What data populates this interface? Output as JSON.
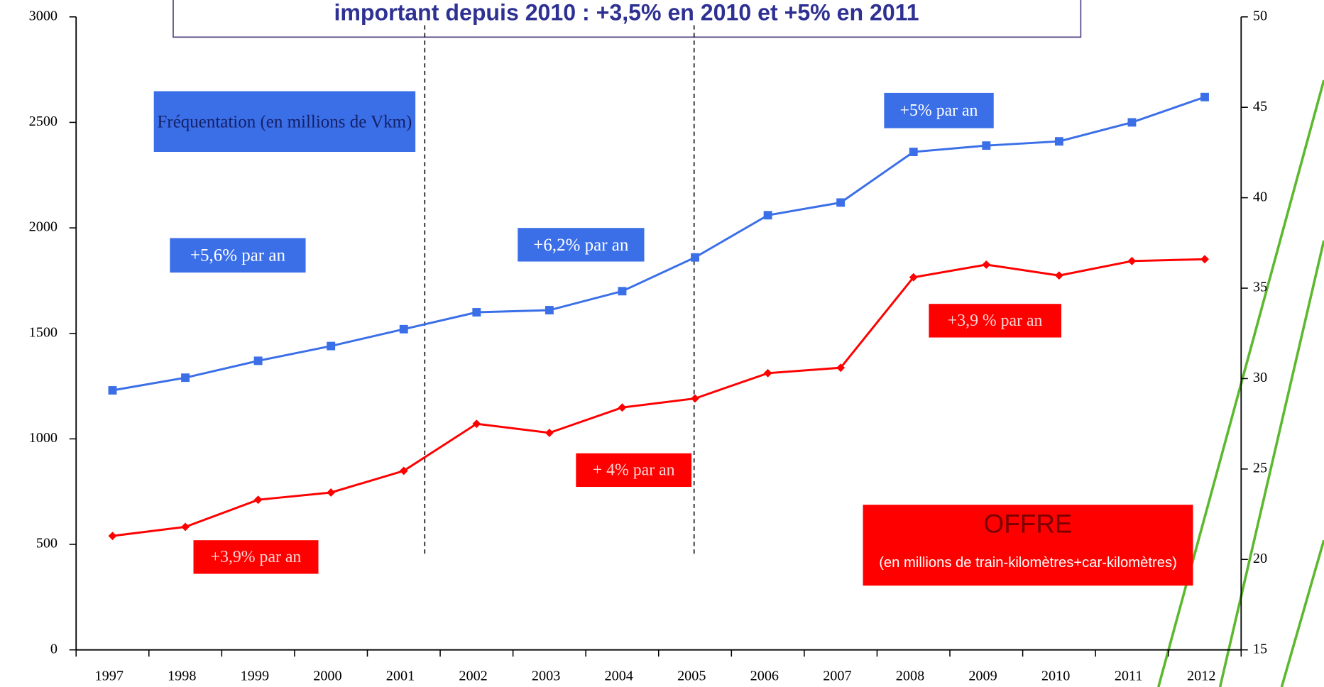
{
  "chart_data": {
    "type": "line",
    "title": "important depuis 2010  : +3,5% en 2010 et +5% en 2011",
    "categories": [
      "1997",
      "1998",
      "1999",
      "2000",
      "2001",
      "2002",
      "2003",
      "2004",
      "2005",
      "2006",
      "2007",
      "2008",
      "2009",
      "2010",
      "2011",
      "2012"
    ],
    "series": [
      {
        "color": "#3b6fe8",
        "marker": "square",
        "values": [
          1230,
          1290,
          1370,
          1440,
          1520,
          1600,
          1610,
          1700,
          1860,
          2060,
          2120,
          2360,
          2390,
          2410,
          2500,
          2620
        ]
      },
      {
        "color": "#ff0000",
        "marker": "diamond",
        "axis": "y2",
        "values": [
          21.3,
          21.8,
          23.3,
          23.7,
          24.9,
          27.5,
          27.0,
          28.4,
          28.9,
          30.3,
          30.6,
          35.6,
          36.3,
          35.7,
          36.5,
          36.6
        ]
      }
    ],
    "ylim": [
      0,
      3000
    ],
    "yticks": [
      0,
      500,
      1000,
      1500,
      2000,
      2500,
      3000
    ],
    "y2lim": [
      15,
      50
    ],
    "y2ticks": [
      15,
      20,
      25,
      30,
      35,
      40,
      45,
      50
    ],
    "annotations": [
      {
        "text": "Fréquentation (en millions de Vkm)"
      },
      {
        "text": "+5,6% par an"
      },
      {
        "text": "+6,2% par an"
      },
      {
        "text": "+5% par an"
      },
      {
        "text": "+3,9 % par an"
      },
      {
        "text": "+ 4% par an"
      },
      {
        "text": "+3,9% par an"
      },
      {
        "text": "OFFRE"
      },
      {
        "text": "(en millions de train-kilomètres+car-kilomètres)"
      }
    ]
  }
}
